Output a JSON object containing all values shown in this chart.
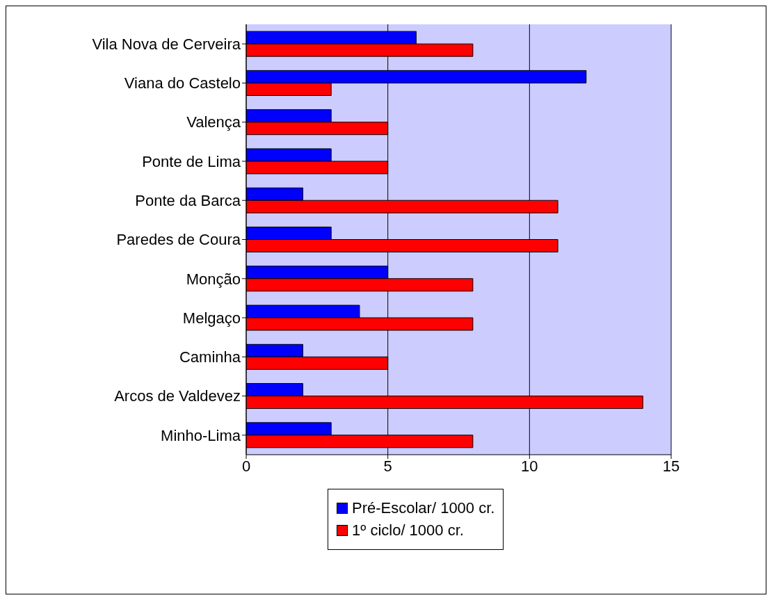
{
  "chart_data": {
    "type": "bar",
    "orientation": "horizontal",
    "categories": [
      "Vila Nova de Cerveira",
      "Viana do Castelo",
      "Valença",
      "Ponte de Lima",
      "Ponte da Barca",
      "Paredes de Coura",
      "Monção",
      "Melgaço",
      "Caminha",
      "Arcos de Valdevez",
      "Minho-Lima"
    ],
    "series": [
      {
        "name": "Pré-Escolar/ 1000 cr.",
        "color": "#0000ff",
        "values": [
          6,
          12,
          3,
          3,
          2,
          3,
          5,
          4,
          2,
          2,
          3
        ]
      },
      {
        "name": "1º ciclo/ 1000 cr.",
        "color": "#ff0000",
        "values": [
          8,
          3,
          5,
          5,
          11,
          11,
          8,
          8,
          5,
          14,
          8
        ]
      }
    ],
    "xlim": [
      0,
      15
    ],
    "xticks": [
      0,
      5,
      10,
      15
    ],
    "grid": "x",
    "legend": "bottom"
  }
}
